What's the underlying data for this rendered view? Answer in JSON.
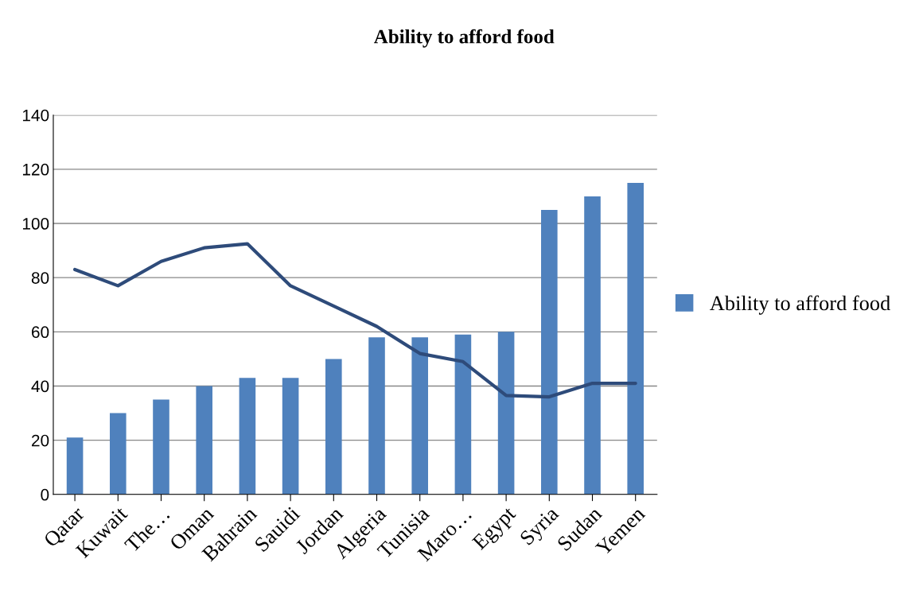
{
  "chart_data": {
    "type": "bar",
    "title": "Ability to afford food",
    "categories": [
      "Qatar",
      "Kuwait",
      "The…",
      "Oman",
      "Bahrain",
      "Sauidi",
      "Jordan",
      "Algeria",
      "Tunisia",
      "Maro…",
      "Egypt",
      "Syria",
      "Sudan",
      "Yemen"
    ],
    "series": [
      {
        "name": "Ability to afford food",
        "color": "#4f81bd",
        "values": [
          21,
          30,
          35,
          40,
          43,
          43,
          50,
          58,
          58,
          59,
          60,
          105,
          110,
          115
        ]
      },
      {
        "type": "line",
        "color": "#2e4b7a",
        "values": [
          83,
          77,
          86,
          91,
          92.5,
          77,
          69.5,
          62,
          52,
          49,
          36.5,
          36,
          41,
          41
        ]
      }
    ],
    "ylim": [
      0,
      140
    ],
    "yticks": [
      0,
      20,
      40,
      60,
      80,
      100,
      120,
      140
    ],
    "grid": "y",
    "legend": "right",
    "marker": "none",
    "line_style": "solid"
  }
}
